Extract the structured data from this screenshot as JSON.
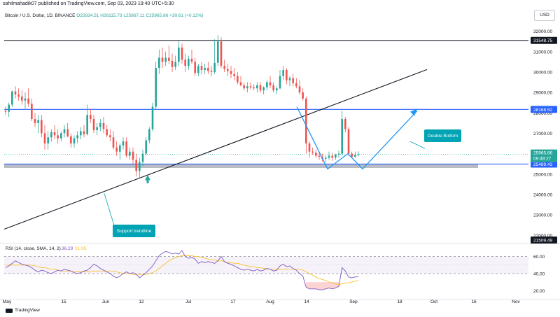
{
  "header": {
    "published": "sahilmahadik07 published on TradingView.com, Sep 03, 2023 19:40 UTC+5:30"
  },
  "symbol": {
    "name": "Bitcoin / U.S. Dollar, 1D, BINANCE",
    "open": "O25934.51",
    "high": "H26115.73",
    "low": "L25867.11",
    "close": "C25965.86",
    "change": "+30.61 (+0.12%)"
  },
  "currency": "USD",
  "footer": {
    "brand": "TradingView"
  },
  "colors": {
    "up": "#26a69a",
    "down": "#ef5350",
    "level_line": "#2962ff",
    "pattern": "#2196f3",
    "trendline": "#131722",
    "rsi": "#7e57c2",
    "rsi_ma": "#fbc02d",
    "support_zone": "#b2b5be",
    "annotation_bg": "#00a4b4"
  },
  "chart_data": [
    {
      "type": "candlestick",
      "title": "Bitcoin / U.S. Dollar, 1D, BINANCE",
      "ylim": [
        21700,
        32500
      ],
      "y_ticks": [
        "32000.00",
        "31000.00",
        "30000.00",
        "29000.00",
        "28000.00",
        "27000.00",
        "26000.00",
        "25000.00",
        "24000.00",
        "23000.00",
        "22000.00"
      ],
      "x_ticks": [
        "May",
        "15",
        "Jun",
        "12",
        "Jul",
        "17",
        "Aug",
        "14",
        "Sep",
        "18",
        "Oct",
        "16",
        "Nov"
      ],
      "ohlc": [
        [
          28100,
          28300,
          27900,
          28050
        ],
        [
          28050,
          28500,
          27800,
          28400
        ],
        [
          28400,
          29100,
          28300,
          29050
        ],
        [
          29050,
          29300,
          28700,
          28900
        ],
        [
          28900,
          29200,
          28600,
          28800
        ],
        [
          28800,
          29100,
          28400,
          28600
        ],
        [
          28600,
          29000,
          28200,
          28700
        ],
        [
          28700,
          29200,
          28300,
          28450
        ],
        [
          28450,
          28700,
          27600,
          27700
        ],
        [
          27700,
          28000,
          27300,
          27500
        ],
        [
          27500,
          27900,
          27000,
          27650
        ],
        [
          27650,
          27900,
          26800,
          27000
        ],
        [
          27000,
          27400,
          26200,
          26500
        ],
        [
          26500,
          27100,
          26200,
          26800
        ],
        [
          26800,
          27200,
          26600,
          27050
        ],
        [
          27050,
          27400,
          26700,
          26900
        ],
        [
          26900,
          27200,
          26500,
          26750
        ],
        [
          26750,
          27100,
          26600,
          27000
        ],
        [
          27000,
          27400,
          26800,
          27200
        ],
        [
          27200,
          27500,
          26800,
          26850
        ],
        [
          26850,
          27000,
          26300,
          26500
        ],
        [
          26500,
          26900,
          26300,
          26750
        ],
        [
          26750,
          27100,
          26500,
          26900
        ],
        [
          26900,
          27300,
          26700,
          27100
        ],
        [
          27100,
          27400,
          26800,
          26950
        ],
        [
          26950,
          28400,
          26900,
          27900
        ],
        [
          27900,
          28200,
          27500,
          27700
        ],
        [
          27700,
          27900,
          27000,
          27150
        ],
        [
          27150,
          27500,
          26900,
          27300
        ],
        [
          27300,
          27700,
          27100,
          27500
        ],
        [
          27500,
          27800,
          27000,
          27200
        ],
        [
          27200,
          27400,
          26800,
          26900
        ],
        [
          26900,
          27200,
          26600,
          26800
        ],
        [
          26800,
          27100,
          26200,
          26300
        ],
        [
          26300,
          26600,
          25900,
          26100
        ],
        [
          26100,
          26500,
          25700,
          26400
        ],
        [
          26400,
          26800,
          26200,
          26600
        ],
        [
          26600,
          26800,
          25800,
          25900
        ],
        [
          25900,
          26300,
          25700,
          26100
        ],
        [
          26100,
          26300,
          25500,
          25700
        ],
        [
          25700,
          26000,
          24900,
          25150
        ],
        [
          25150,
          25800,
          24800,
          25600
        ],
        [
          25600,
          26200,
          25400,
          26000
        ],
        [
          26000,
          26800,
          25900,
          26650
        ],
        [
          26650,
          27300,
          26500,
          27200
        ],
        [
          27200,
          28500,
          27100,
          28300
        ],
        [
          28300,
          30500,
          28200,
          30200
        ],
        [
          30200,
          31100,
          29900,
          30700
        ],
        [
          30700,
          31200,
          30200,
          30500
        ],
        [
          30500,
          31000,
          30300,
          30700
        ],
        [
          30700,
          31300,
          30400,
          30550
        ],
        [
          30550,
          30900,
          30000,
          30250
        ],
        [
          30250,
          30800,
          30100,
          30500
        ],
        [
          30500,
          31500,
          30300,
          31200
        ],
        [
          31200,
          31400,
          30400,
          30600
        ],
        [
          30600,
          30900,
          30000,
          30300
        ],
        [
          30300,
          30800,
          30100,
          30650
        ],
        [
          30650,
          31100,
          30400,
          30500
        ],
        [
          30500,
          30700,
          29800,
          29950
        ],
        [
          29950,
          30400,
          29800,
          30300
        ],
        [
          30300,
          30500,
          29900,
          30100
        ],
        [
          30100,
          30400,
          29900,
          30200
        ],
        [
          30200,
          30500,
          29900,
          30050
        ],
        [
          30050,
          30300,
          29800,
          30000
        ],
        [
          30000,
          31600,
          29900,
          30450
        ],
        [
          30450,
          31800,
          30300,
          31500
        ],
        [
          31500,
          31700,
          30200,
          30300
        ],
        [
          30300,
          30600,
          30000,
          30150
        ],
        [
          30150,
          30400,
          29800,
          30050
        ],
        [
          30050,
          30300,
          29700,
          29900
        ],
        [
          29900,
          30200,
          29600,
          29800
        ],
        [
          29800,
          30000,
          29400,
          29500
        ],
        [
          29500,
          29800,
          29300,
          29350
        ],
        [
          29350,
          29500,
          29100,
          29200
        ],
        [
          29200,
          29500,
          29000,
          29300
        ],
        [
          29300,
          29500,
          29150,
          29250
        ],
        [
          29250,
          29400,
          29100,
          29200
        ],
        [
          29200,
          29500,
          29000,
          29350
        ],
        [
          29350,
          29500,
          29000,
          29100
        ],
        [
          29100,
          29300,
          28900,
          29250
        ],
        [
          29250,
          29600,
          29100,
          29500
        ],
        [
          29500,
          29800,
          29200,
          29350
        ],
        [
          29350,
          29500,
          29000,
          29100
        ],
        [
          29100,
          29300,
          28900,
          29200
        ],
        [
          29200,
          30100,
          29150,
          29800
        ],
        [
          29800,
          30300,
          29600,
          30100
        ],
        [
          30100,
          30200,
          29400,
          29600
        ],
        [
          29600,
          29800,
          29300,
          29700
        ],
        [
          29700,
          29900,
          29300,
          29450
        ],
        [
          29450,
          29700,
          29200,
          29300
        ],
        [
          29300,
          29600,
          28900,
          29000
        ],
        [
          29000,
          29200,
          28600,
          28700
        ],
        [
          28700,
          28800,
          26000,
          26500
        ],
        [
          26500,
          26600,
          25800,
          26100
        ],
        [
          26100,
          26300,
          25950,
          26050
        ],
        [
          26050,
          26200,
          25800,
          25900
        ],
        [
          25900,
          26100,
          25700,
          25850
        ],
        [
          25850,
          26000,
          25600,
          25750
        ],
        [
          25750,
          25900,
          25600,
          25800
        ],
        [
          25800,
          26100,
          25700,
          25900
        ],
        [
          25900,
          26050,
          25650,
          25800
        ],
        [
          25800,
          26000,
          25700,
          25950
        ],
        [
          25950,
          26150,
          25800,
          26000
        ],
        [
          26000,
          28100,
          25900,
          27700
        ],
        [
          27700,
          27800,
          27050,
          27200
        ],
        [
          27200,
          27300,
          25900,
          26000
        ],
        [
          26000,
          26100,
          25800,
          25850
        ],
        [
          25850,
          26100,
          25800,
          25950
        ],
        [
          25934.51,
          26115.73,
          25867.11,
          25965.86
        ]
      ],
      "levels": [
        {
          "label": "31548.75",
          "value": 31548.75,
          "color": "#131722"
        },
        {
          "label": "28168.52",
          "value": 28168.52,
          "color": "#2962ff"
        },
        {
          "label": "25489.43",
          "value": 25489.43,
          "color": "#2962ff"
        },
        {
          "label": "21509.49",
          "value": 21509.49,
          "color": "#131722"
        }
      ],
      "price_labels": {
        "last": "25965.86",
        "countdown": "09:49:27"
      },
      "annotations": [
        "Double Bottom",
        "Support trendline"
      ]
    },
    {
      "type": "line",
      "title": "RSI (14, close, SMA, 14, 2)",
      "legend_values": [
        "36.29",
        "31.95"
      ],
      "ylim": [
        12,
        72
      ],
      "y_ticks": [
        "60.00",
        "40.00",
        "20.00"
      ],
      "series": [
        {
          "name": "RSI",
          "values": [
            47,
            49,
            52,
            55,
            53,
            51,
            50,
            49,
            47,
            44,
            42,
            44,
            43,
            41,
            40,
            42,
            44,
            43,
            45,
            44,
            43,
            41,
            40,
            41,
            43,
            44,
            47,
            51,
            49,
            46,
            44,
            42,
            40,
            37,
            35,
            37,
            40,
            42,
            40,
            41,
            39,
            35,
            38,
            41,
            45,
            49,
            55,
            61,
            64,
            66,
            65,
            63,
            64,
            63,
            67,
            60,
            58,
            59,
            57,
            52,
            54,
            53,
            54,
            53,
            52,
            55,
            60,
            54,
            52,
            51,
            49,
            47,
            45,
            44,
            45,
            44,
            43,
            45,
            43,
            44,
            46,
            45,
            43,
            44,
            49,
            51,
            48,
            49,
            46,
            44,
            40,
            37,
            24,
            22,
            22,
            22,
            21,
            21,
            22,
            23,
            22,
            23,
            25,
            47,
            43,
            36,
            35,
            36,
            36.29
          ]
        },
        {
          "name": "MA",
          "values": [
            50,
            50,
            50,
            50,
            50,
            50,
            50,
            50,
            50,
            49,
            48,
            47,
            47,
            46,
            45,
            45,
            44,
            43,
            43,
            43,
            43,
            42,
            42,
            42,
            42,
            42,
            42,
            43,
            43,
            43,
            43,
            43,
            43,
            43,
            42,
            41,
            40,
            40,
            40,
            39,
            39,
            39,
            39,
            39,
            40,
            41,
            43,
            46,
            49,
            52,
            55,
            57,
            59,
            60,
            61,
            61,
            61,
            61,
            60,
            60,
            59,
            58,
            57,
            56,
            56,
            55,
            55,
            54,
            53,
            53,
            52,
            52,
            51,
            50,
            49,
            48,
            48,
            47,
            47,
            46,
            46,
            45,
            45,
            45,
            45,
            45,
            45,
            45,
            45,
            45,
            45,
            44,
            42,
            40,
            38,
            36,
            34,
            33,
            32,
            30,
            29,
            28,
            27,
            28,
            29,
            29,
            30,
            31,
            31.95
          ]
        }
      ]
    }
  ]
}
